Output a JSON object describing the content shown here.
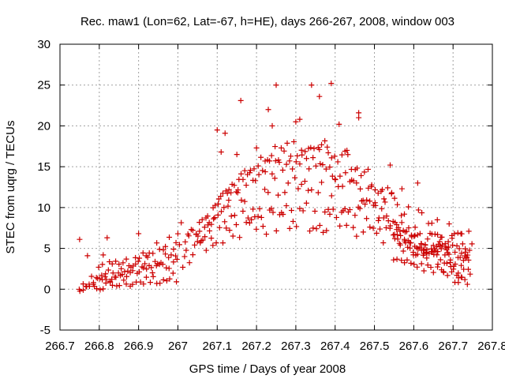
{
  "chart_data": {
    "type": "scatter",
    "title": "Rec. maw1 (Lon=62, Lat=-67, h=HE), days 266-267, 2008, window 003",
    "xlabel": "GPS time / Days of year 2008",
    "ylabel": "STEC from uqrg / TECUs",
    "xlim": [
      266.7,
      267.8
    ],
    "ylim": [
      -5,
      30
    ],
    "xticks": [
      "266.7",
      "266.8",
      "266.9",
      "267",
      "267.1",
      "267.2",
      "267.3",
      "267.4",
      "267.5",
      "267.6",
      "267.7",
      "267.8"
    ],
    "yticks": [
      "-5",
      "0",
      "5",
      "10",
      "15",
      "20",
      "25",
      "30"
    ],
    "grid": true,
    "legend": "none",
    "marker": "plus",
    "color": "#cc0000",
    "outliers": [
      [
        266.75,
        6.1
      ],
      [
        266.77,
        4.1
      ],
      [
        266.81,
        4.2
      ],
      [
        266.82,
        6.3
      ],
      [
        266.9,
        6.8
      ],
      [
        267.1,
        19.5
      ],
      [
        267.12,
        19.1
      ],
      [
        267.16,
        23.1
      ],
      [
        267.25,
        25.0
      ],
      [
        267.3,
        20.5
      ],
      [
        267.31,
        20.8
      ],
      [
        267.34,
        25.0
      ],
      [
        267.36,
        23.6
      ],
      [
        267.39,
        25.2
      ],
      [
        267.41,
        20.2
      ],
      [
        267.46,
        21.6
      ],
      [
        267.46,
        21.0
      ],
      [
        267.52,
        12.2
      ],
      [
        267.54,
        15.2
      ],
      [
        267.57,
        12.3
      ],
      [
        267.61,
        13.0
      ],
      [
        267.66,
        8.5
      ],
      [
        267.69,
        8.0
      ],
      [
        267.72,
        6.8
      ],
      [
        267.2,
        17.3
      ],
      [
        267.23,
        22.0
      ],
      [
        267.24,
        20.0
      ],
      [
        267.36,
        17.1
      ],
      [
        267.38,
        17.4
      ],
      [
        267.43,
        17.0
      ],
      [
        267.11,
        16.8
      ],
      [
        267.15,
        16.5
      ],
      [
        267.13,
        12.2
      ]
    ],
    "series": [
      {
        "x_start": 266.75,
        "x_end": 267.0,
        "y_start": 0.0,
        "y_end": 1.5,
        "peak_x": 267.3,
        "peak_y": 8.5,
        "noise": 0.6
      },
      {
        "x_start": 266.75,
        "x_end": 267.0,
        "y_start": 0.5,
        "y_end": 3.0,
        "peak_x": 267.32,
        "peak_y": 10.0,
        "noise": 0.7
      },
      {
        "x_start": 266.78,
        "x_end": 267.0,
        "y_start": 1.0,
        "y_end": 4.5,
        "peak_x": 267.35,
        "peak_y": 11.5,
        "noise": 0.8
      },
      {
        "x_start": 266.8,
        "x_end": 267.0,
        "y_start": 2.0,
        "y_end": 6.0,
        "peak_x": 267.33,
        "peak_y": 13.5,
        "noise": 0.9
      },
      {
        "x_start": 267.02,
        "x_end": 267.0,
        "y_start": 5.0,
        "y_end": 7.0,
        "peak_x": 267.3,
        "peak_y": 15.5,
        "noise": 1.0
      },
      {
        "x_start": 267.05,
        "x_end": 267.0,
        "y_start": 6.0,
        "y_end": 8.0,
        "peak_x": 267.33,
        "peak_y": 17.5,
        "noise": 1.1
      },
      {
        "x_start": 267.55,
        "x_end": 267.74,
        "y_start": 4.0,
        "y_end": 0.8,
        "peak_x": 267.33,
        "peak_y": 9.0,
        "noise": 0.6
      },
      {
        "x_start": 267.55,
        "x_end": 267.74,
        "y_start": 6.0,
        "y_end": 2.0,
        "peak_x": 267.36,
        "peak_y": 11.0,
        "noise": 0.7
      },
      {
        "x_start": 267.55,
        "x_end": 267.74,
        "y_start": 7.0,
        "y_end": 3.5,
        "peak_x": 267.4,
        "peak_y": 12.5,
        "noise": 0.8
      }
    ]
  }
}
